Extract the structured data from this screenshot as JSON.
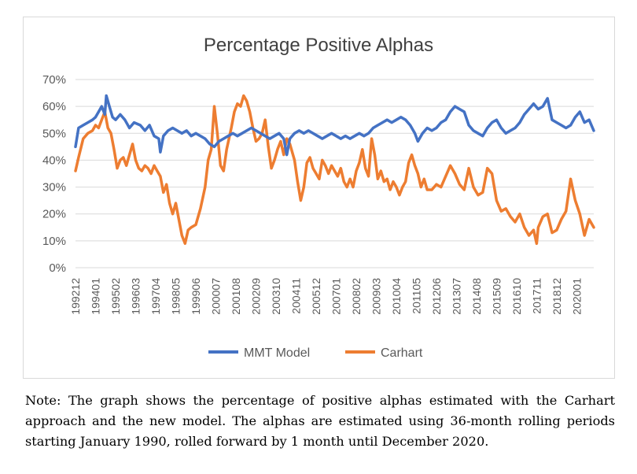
{
  "chart_data": {
    "type": "line",
    "title": "Percentage Positive Alphas",
    "xlabel": "",
    "ylabel": "",
    "ylim": [
      0,
      70
    ],
    "yticks": [
      "0%",
      "10%",
      "20%",
      "30%",
      "40%",
      "50%",
      "60%",
      "70%"
    ],
    "x_tick_labels": [
      "199212",
      "199401",
      "199502",
      "199603",
      "199704",
      "199805",
      "199906",
      "200007",
      "200108",
      "200209",
      "200310",
      "200411",
      "200512",
      "200701",
      "200802",
      "200903",
      "201004",
      "201105",
      "201206",
      "201307",
      "201408",
      "201509",
      "201610",
      "201711",
      "201812",
      "202001"
    ],
    "x_range": [
      "199212",
      "202012"
    ],
    "grid": "horizontal",
    "legend_position": "bottom",
    "series": [
      {
        "name": "MMT Model",
        "color": "#4472C4",
        "points": [
          [
            "199212",
            45
          ],
          [
            "199302",
            52
          ],
          [
            "199305",
            53
          ],
          [
            "199308",
            54
          ],
          [
            "199311",
            55
          ],
          [
            "199401",
            56
          ],
          [
            "199403",
            58
          ],
          [
            "199405",
            60
          ],
          [
            "199407",
            57
          ],
          [
            "199408",
            64
          ],
          [
            "199410",
            60
          ],
          [
            "199412",
            56
          ],
          [
            "199502",
            55
          ],
          [
            "199505",
            57
          ],
          [
            "199508",
            55
          ],
          [
            "199511",
            52
          ],
          [
            "199602",
            54
          ],
          [
            "199606",
            53
          ],
          [
            "199609",
            51
          ],
          [
            "199612",
            53
          ],
          [
            "199703",
            49
          ],
          [
            "199706",
            48
          ],
          [
            "199707",
            43
          ],
          [
            "199709",
            49
          ],
          [
            "199712",
            51
          ],
          [
            "199803",
            52
          ],
          [
            "199806",
            51
          ],
          [
            "199809",
            50
          ],
          [
            "199812",
            51
          ],
          [
            "199903",
            49
          ],
          [
            "199906",
            50
          ],
          [
            "199909",
            49
          ],
          [
            "199912",
            48
          ],
          [
            "200003",
            46
          ],
          [
            "200006",
            45
          ],
          [
            "200009",
            47
          ],
          [
            "200012",
            48
          ],
          [
            "200103",
            49
          ],
          [
            "200106",
            50
          ],
          [
            "200109",
            49
          ],
          [
            "200112",
            50
          ],
          [
            "200203",
            51
          ],
          [
            "200206",
            52
          ],
          [
            "200209",
            51
          ],
          [
            "200212",
            50
          ],
          [
            "200303",
            49
          ],
          [
            "200306",
            48
          ],
          [
            "200309",
            49
          ],
          [
            "200312",
            50
          ],
          [
            "200403",
            48
          ],
          [
            "200405",
            42
          ],
          [
            "200407",
            48
          ],
          [
            "200410",
            50
          ],
          [
            "200501",
            51
          ],
          [
            "200504",
            50
          ],
          [
            "200507",
            51
          ],
          [
            "200510",
            50
          ],
          [
            "200601",
            49
          ],
          [
            "200604",
            48
          ],
          [
            "200607",
            49
          ],
          [
            "200610",
            50
          ],
          [
            "200701",
            49
          ],
          [
            "200704",
            48
          ],
          [
            "200707",
            49
          ],
          [
            "200710",
            48
          ],
          [
            "200801",
            49
          ],
          [
            "200804",
            50
          ],
          [
            "200807",
            49
          ],
          [
            "200810",
            50
          ],
          [
            "200901",
            52
          ],
          [
            "200904",
            53
          ],
          [
            "200907",
            54
          ],
          [
            "200910",
            55
          ],
          [
            "201001",
            54
          ],
          [
            "201004",
            55
          ],
          [
            "201007",
            56
          ],
          [
            "201010",
            55
          ],
          [
            "201101",
            53
          ],
          [
            "201104",
            50
          ],
          [
            "201106",
            47
          ],
          [
            "201109",
            50
          ],
          [
            "201112",
            52
          ],
          [
            "201203",
            51
          ],
          [
            "201206",
            52
          ],
          [
            "201209",
            54
          ],
          [
            "201212",
            55
          ],
          [
            "201303",
            58
          ],
          [
            "201306",
            60
          ],
          [
            "201309",
            59
          ],
          [
            "201312",
            58
          ],
          [
            "201403",
            53
          ],
          [
            "201406",
            51
          ],
          [
            "201409",
            50
          ],
          [
            "201412",
            49
          ],
          [
            "201503",
            52
          ],
          [
            "201506",
            54
          ],
          [
            "201509",
            55
          ],
          [
            "201512",
            52
          ],
          [
            "201603",
            50
          ],
          [
            "201606",
            51
          ],
          [
            "201609",
            52
          ],
          [
            "201612",
            54
          ],
          [
            "201703",
            57
          ],
          [
            "201706",
            59
          ],
          [
            "201709",
            61
          ],
          [
            "201712",
            59
          ],
          [
            "201803",
            60
          ],
          [
            "201806",
            63
          ],
          [
            "201809",
            55
          ],
          [
            "201812",
            54
          ],
          [
            "201903",
            53
          ],
          [
            "201906",
            52
          ],
          [
            "201909",
            53
          ],
          [
            "201912",
            56
          ],
          [
            "202003",
            58
          ],
          [
            "202006",
            54
          ],
          [
            "202009",
            55
          ],
          [
            "202012",
            51
          ]
        ]
      },
      {
        "name": "Carhart",
        "color": "#ED7D31",
        "points": [
          [
            "199212",
            36
          ],
          [
            "199302",
            41
          ],
          [
            "199305",
            48
          ],
          [
            "199308",
            50
          ],
          [
            "199311",
            51
          ],
          [
            "199401",
            53
          ],
          [
            "199403",
            52
          ],
          [
            "199405",
            55
          ],
          [
            "199407",
            58
          ],
          [
            "199409",
            52
          ],
          [
            "199411",
            50
          ],
          [
            "199501",
            44
          ],
          [
            "199503",
            37
          ],
          [
            "199505",
            40
          ],
          [
            "199507",
            41
          ],
          [
            "199509",
            38
          ],
          [
            "199511",
            42
          ],
          [
            "199601",
            46
          ],
          [
            "199603",
            40
          ],
          [
            "199605",
            37
          ],
          [
            "199607",
            36
          ],
          [
            "199609",
            38
          ],
          [
            "199611",
            37
          ],
          [
            "199701",
            35
          ],
          [
            "199703",
            38
          ],
          [
            "199705",
            36
          ],
          [
            "199707",
            34
          ],
          [
            "199709",
            28
          ],
          [
            "199711",
            31
          ],
          [
            "199801",
            24
          ],
          [
            "199803",
            20
          ],
          [
            "199805",
            24
          ],
          [
            "199807",
            18
          ],
          [
            "199809",
            12
          ],
          [
            "199811",
            9
          ],
          [
            "199901",
            14
          ],
          [
            "199903",
            15
          ],
          [
            "199906",
            16
          ],
          [
            "199909",
            22
          ],
          [
            "199912",
            30
          ],
          [
            "200002",
            40
          ],
          [
            "200004",
            44
          ],
          [
            "200006",
            60
          ],
          [
            "200008",
            50
          ],
          [
            "200010",
            38
          ],
          [
            "200012",
            36
          ],
          [
            "200102",
            44
          ],
          [
            "200105",
            52
          ],
          [
            "200107",
            58
          ],
          [
            "200109",
            61
          ],
          [
            "200111",
            60
          ],
          [
            "200201",
            64
          ],
          [
            "200203",
            62
          ],
          [
            "200205",
            58
          ],
          [
            "200207",
            52
          ],
          [
            "200209",
            47
          ],
          [
            "200211",
            48
          ],
          [
            "200301",
            50
          ],
          [
            "200303",
            55
          ],
          [
            "200305",
            45
          ],
          [
            "200307",
            37
          ],
          [
            "200309",
            40
          ],
          [
            "200311",
            44
          ],
          [
            "200401",
            47
          ],
          [
            "200403",
            42
          ],
          [
            "200405",
            48
          ],
          [
            "200407",
            46
          ],
          [
            "200410",
            40
          ],
          [
            "200412",
            32
          ],
          [
            "200502",
            25
          ],
          [
            "200504",
            30
          ],
          [
            "200506",
            39
          ],
          [
            "200508",
            41
          ],
          [
            "200510",
            37
          ],
          [
            "200512",
            35
          ],
          [
            "200602",
            33
          ],
          [
            "200604",
            40
          ],
          [
            "200606",
            38
          ],
          [
            "200608",
            35
          ],
          [
            "200610",
            38
          ],
          [
            "200612",
            36
          ],
          [
            "200702",
            34
          ],
          [
            "200704",
            37
          ],
          [
            "200706",
            32
          ],
          [
            "200708",
            30
          ],
          [
            "200710",
            33
          ],
          [
            "200712",
            30
          ],
          [
            "200802",
            36
          ],
          [
            "200804",
            39
          ],
          [
            "200806",
            44
          ],
          [
            "200808",
            37
          ],
          [
            "200810",
            34
          ],
          [
            "200812",
            48
          ],
          [
            "200902",
            42
          ],
          [
            "200904",
            33
          ],
          [
            "200906",
            36
          ],
          [
            "200908",
            32
          ],
          [
            "200910",
            33
          ],
          [
            "200912",
            29
          ],
          [
            "201002",
            32
          ],
          [
            "201004",
            30
          ],
          [
            "201006",
            27
          ],
          [
            "201008",
            30
          ],
          [
            "201010",
            32
          ],
          [
            "201012",
            39
          ],
          [
            "201102",
            42
          ],
          [
            "201104",
            38
          ],
          [
            "201106",
            35
          ],
          [
            "201108",
            30
          ],
          [
            "201110",
            33
          ],
          [
            "201112",
            29
          ],
          [
            "201203",
            29
          ],
          [
            "201206",
            31
          ],
          [
            "201209",
            30
          ],
          [
            "201212",
            34
          ],
          [
            "201303",
            38
          ],
          [
            "201306",
            35
          ],
          [
            "201309",
            31
          ],
          [
            "201312",
            29
          ],
          [
            "201403",
            37
          ],
          [
            "201406",
            30
          ],
          [
            "201409",
            27
          ],
          [
            "201412",
            28
          ],
          [
            "201503",
            37
          ],
          [
            "201506",
            35
          ],
          [
            "201509",
            25
          ],
          [
            "201512",
            21
          ],
          [
            "201603",
            22
          ],
          [
            "201606",
            19
          ],
          [
            "201609",
            17
          ],
          [
            "201612",
            20
          ],
          [
            "201703",
            15
          ],
          [
            "201706",
            12
          ],
          [
            "201709",
            14
          ],
          [
            "201711",
            9
          ],
          [
            "201712",
            15
          ],
          [
            "201803",
            19
          ],
          [
            "201806",
            20
          ],
          [
            "201809",
            13
          ],
          [
            "201812",
            14
          ],
          [
            "201903",
            18
          ],
          [
            "201906",
            21
          ],
          [
            "201909",
            33
          ],
          [
            "201912",
            25
          ],
          [
            "202003",
            20
          ],
          [
            "202006",
            12
          ],
          [
            "202009",
            18
          ],
          [
            "202012",
            15
          ]
        ]
      }
    ]
  },
  "note": "Note: The graph shows the percentage of positive alphas estimated with the Carhart approach and the new model. The alphas are estimated using 36-month rolling periods starting January 1990, rolled forward by 1 month until December 2020."
}
